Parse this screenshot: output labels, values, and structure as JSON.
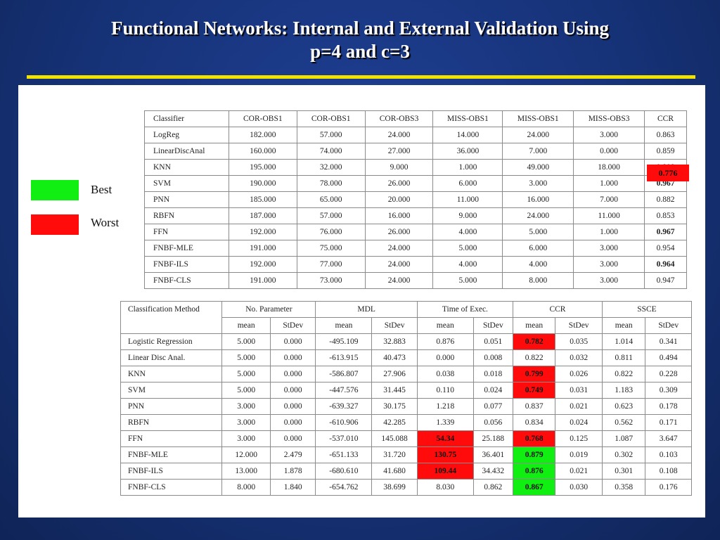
{
  "title": {
    "line1": "Functional Networks: Internal  and External Validation Using",
    "line2": "p=4 and c=3"
  },
  "colors": {
    "best": "#11ee11",
    "worst": "#ff0b0b",
    "rule": "#f2e200"
  },
  "legend": {
    "best": "Best",
    "worst": "Worst"
  },
  "table1": {
    "headers": [
      "Classifier",
      "COR-OBS1",
      "COR-OBS1",
      "COR-OBS3",
      "MISS-OBS1",
      "MISS-OBS1",
      "MISS-OBS3",
      "CCR"
    ],
    "rows": [
      [
        "LogReg",
        "182.000",
        "57.000",
        "24.000",
        "14.000",
        "24.000",
        "3.000",
        "0.863"
      ],
      [
        "LinearDiscAnal",
        "160.000",
        "74.000",
        "27.000",
        "36.000",
        "7.000",
        "0.000",
        "0.859"
      ],
      [
        "KNN",
        "195.000",
        "32.000",
        "9.000",
        "1.000",
        "49.000",
        "18.000",
        "0.808"
      ],
      [
        "SVM",
        "190.000",
        "78.000",
        "26.000",
        "6.000",
        "3.000",
        "1.000",
        "0.967"
      ],
      [
        "PNN",
        "185.000",
        "65.000",
        "20.000",
        "11.000",
        "16.000",
        "7.000",
        "0.882"
      ],
      [
        "RBFN",
        "187.000",
        "57.000",
        "16.000",
        "9.000",
        "24.000",
        "11.000",
        "0.853"
      ],
      [
        "FFN",
        "192.000",
        "76.000",
        "26.000",
        "4.000",
        "5.000",
        "1.000",
        "0.967"
      ],
      [
        "FNBF-MLE",
        "191.000",
        "75.000",
        "24.000",
        "5.000",
        "6.000",
        "3.000",
        "0.954"
      ],
      [
        "FNBF-ILS",
        "192.000",
        "77.000",
        "24.000",
        "4.000",
        "4.000",
        "3.000",
        "0.964"
      ],
      [
        "FNBF-CLS",
        "191.000",
        "73.000",
        "24.000",
        "5.000",
        "8.000",
        "3.000",
        "0.947"
      ]
    ],
    "overlay": "0.776"
  },
  "table2": {
    "headers": [
      "Classification Method",
      "No. Parameter",
      "MDL",
      "Time of Exec.",
      "CCR",
      "SSCE"
    ],
    "subheaders": [
      "mean",
      "StDev",
      "mean",
      "StDev",
      "mean",
      "StDev",
      "mean",
      "StDev",
      "mean",
      "StDev"
    ],
    "rows": [
      [
        "Logistic Regression",
        "5.000",
        "0.000",
        "-495.109",
        "32.883",
        "0.876",
        "0.051",
        "0.782",
        "0.035",
        "1.014",
        "0.341"
      ],
      [
        "Linear Disc Anal.",
        "5.000",
        "0.000",
        "-613.915",
        "40.473",
        "0.000",
        "0.008",
        "0.822",
        "0.032",
        "0.811",
        "0.494"
      ],
      [
        "KNN",
        "5.000",
        "0.000",
        "-586.807",
        "27.906",
        "0.038",
        "0.018",
        "0.799",
        "0.026",
        "0.822",
        "0.228"
      ],
      [
        "SVM",
        "5.000",
        "0.000",
        "-447.576",
        "31.445",
        "0.110",
        "0.024",
        "0.749",
        "0.031",
        "1.183",
        "0.309"
      ],
      [
        "PNN",
        "3.000",
        "0.000",
        "-639.327",
        "30.175",
        "1.218",
        "0.077",
        "0.837",
        "0.021",
        "0.623",
        "0.178"
      ],
      [
        "RBFN",
        "3.000",
        "0.000",
        "-610.906",
        "42.285",
        "1.339",
        "0.056",
        "0.834",
        "0.024",
        "0.562",
        "0.171"
      ],
      [
        "FFN",
        "3.000",
        "0.000",
        "-537.010",
        "145.088",
        "54.34",
        "25.188",
        "0.768",
        "0.125",
        "1.087",
        "3.647"
      ],
      [
        "FNBF-MLE",
        "12.000",
        "2.479",
        "-651.133",
        "31.720",
        "130.75",
        "36.401",
        "0.879",
        "0.019",
        "0.302",
        "0.103"
      ],
      [
        "FNBF-ILS",
        "13.000",
        "1.878",
        "-680.610",
        "41.680",
        "109.44",
        "34.432",
        "0.876",
        "0.021",
        "0.301",
        "0.108"
      ],
      [
        "FNBF-CLS",
        "8.000",
        "1.840",
        "-654.762",
        "38.699",
        "8.030",
        "0.862",
        "0.867",
        "0.030",
        "0.358",
        "0.176"
      ]
    ]
  }
}
